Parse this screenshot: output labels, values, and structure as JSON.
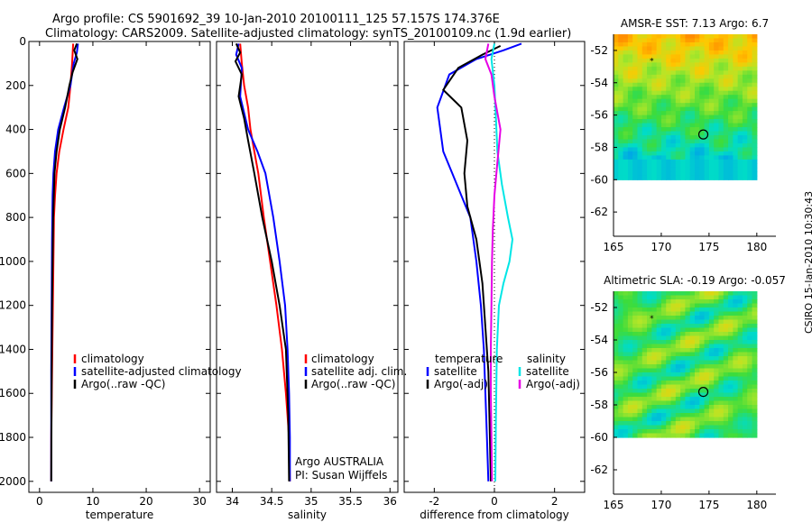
{
  "header": {
    "line1": "Argo profile: CS 5901692_39 10-Jan-2010 20100111_125 57.157S 174.376E",
    "line2": "Climatology: CARS2009. Satellite-adjusted climatology: synTS_20100109.nc (1.9d earlier)"
  },
  "credit": "CSIRO 15-Jan-2010 10:30:43",
  "colors": {
    "climatology": "#ff0000",
    "satellite": "#0000ff",
    "argo": "#000000",
    "salinity_satellite": "#00e6e6",
    "salinity_argo": "#e600e6"
  },
  "chart_data": [
    {
      "id": "temperature",
      "type": "line",
      "xlabel": "temperature",
      "ylabel": "",
      "xlim": [
        -2,
        32
      ],
      "ylim": [
        0,
        2050
      ],
      "xticks": [
        0,
        10,
        20,
        30
      ],
      "xtick_labels": [
        "0",
        "10",
        "20",
        "30"
      ],
      "yticks": [
        0,
        200,
        400,
        600,
        800,
        1000,
        1200,
        1400,
        1600,
        1800,
        2000
      ],
      "ytick_labels": [
        "0",
        "200",
        "400",
        "600",
        "800",
        "1000",
        "1200",
        "1400",
        "1600",
        "1800",
        "2000"
      ],
      "legend": [
        "climatology",
        "satellite-adjusted climatology",
        "Argo(..raw -QC)"
      ],
      "series": [
        {
          "name": "climatology",
          "color": "#ff0000",
          "x": [
            6.3,
            6.1,
            5.8,
            5.4,
            4.5,
            3.7,
            3.2,
            2.9,
            2.7,
            2.6,
            2.5,
            2.4,
            2.3,
            2.2,
            2.2
          ],
          "y": [
            10,
            100,
            200,
            300,
            400,
            500,
            600,
            700,
            800,
            1000,
            1200,
            1400,
            1600,
            1800,
            2000
          ]
        },
        {
          "name": "satellite-adjusted climatology",
          "color": "#0000ff",
          "x": [
            7.2,
            7.0,
            6.4,
            5.8,
            4.6,
            3.5,
            2.9,
            2.6,
            2.45,
            2.35,
            2.3,
            2.25,
            2.2,
            2.2,
            2.2
          ],
          "y": [
            10,
            50,
            100,
            200,
            300,
            400,
            500,
            600,
            700,
            900,
            1100,
            1300,
            1500,
            1800,
            2000
          ]
        },
        {
          "name": "Argo(..raw -QC)",
          "color": "#000000",
          "x": [
            7.0,
            6.5,
            7.1,
            6.2,
            5.6,
            4.8,
            3.8,
            3.2,
            2.8,
            2.55,
            2.45,
            2.35,
            2.3,
            2.25,
            2.2
          ],
          "y": [
            10,
            40,
            80,
            140,
            200,
            300,
            400,
            500,
            600,
            800,
            1000,
            1200,
            1400,
            1700,
            2000
          ]
        }
      ]
    },
    {
      "id": "salinity",
      "type": "line",
      "xlabel": "salinity",
      "ylabel": "",
      "xlim": [
        33.8,
        36.1
      ],
      "ylim": [
        0,
        2050
      ],
      "xticks": [
        34,
        34.5,
        35,
        35.5,
        36
      ],
      "xtick_labels": [
        "34",
        "34.5",
        "35",
        "35.5",
        "36"
      ],
      "legend": [
        "climatology",
        "satellite adj. clim.",
        "Argo(..raw -QC)"
      ],
      "footnote": [
        "Argo AUSTRALIA",
        "PI: Susan Wijffels"
      ],
      "series": [
        {
          "name": "climatology",
          "color": "#ff0000",
          "x": [
            34.1,
            34.12,
            34.15,
            34.2,
            34.23,
            34.28,
            34.33,
            34.4,
            34.48,
            34.56,
            34.63,
            34.68,
            34.72,
            34.73
          ],
          "y": [
            10,
            100,
            200,
            300,
            400,
            500,
            600,
            800,
            1000,
            1200,
            1400,
            1600,
            1800,
            2000
          ]
        },
        {
          "name": "satellite adj. clim.",
          "color": "#0000ff",
          "x": [
            34.08,
            34.05,
            34.12,
            34.1,
            34.2,
            34.32,
            34.42,
            34.52,
            34.6,
            34.67,
            34.7,
            34.72,
            34.73,
            34.73
          ],
          "y": [
            10,
            60,
            120,
            250,
            400,
            500,
            600,
            800,
            1000,
            1200,
            1400,
            1600,
            1800,
            2000
          ]
        },
        {
          "name": "Argo(..raw -QC)",
          "color": "#000000",
          "x": [
            34.05,
            34.1,
            34.04,
            34.12,
            34.08,
            34.15,
            34.2,
            34.28,
            34.38,
            34.5,
            34.6,
            34.68,
            34.71,
            34.72
          ],
          "y": [
            10,
            50,
            90,
            150,
            250,
            350,
            450,
            600,
            800,
            1000,
            1200,
            1400,
            1700,
            2000
          ]
        }
      ]
    },
    {
      "id": "difference",
      "type": "line",
      "xlabel": "difference from climatology",
      "ylabel": "",
      "xlim": [
        -3,
        3
      ],
      "ylim": [
        0,
        2050
      ],
      "xticks": [
        -2,
        0,
        2
      ],
      "xtick_labels": [
        "-2",
        "0",
        "2"
      ],
      "legend": [
        "temperature",
        "satellite",
        "Argo(-adj)",
        "salinity",
        "satellite",
        "Argo(-adj)"
      ],
      "series": [
        {
          "name": "temperature satellite",
          "color": "#0000ff",
          "x": [
            0.9,
            0.3,
            -0.6,
            -1.5,
            -1.9,
            -1.7,
            -1.4,
            -1.1,
            -0.8,
            -0.6,
            -0.45,
            -0.35,
            -0.3,
            -0.25,
            -0.2
          ],
          "y": [
            10,
            40,
            80,
            150,
            300,
            500,
            600,
            700,
            800,
            1000,
            1200,
            1400,
            1600,
            1800,
            2000
          ]
        },
        {
          "name": "temperature Argo(-adj)",
          "color": "#000000",
          "x": [
            0.2,
            -0.4,
            -1.2,
            -1.7,
            -1.1,
            -0.9,
            -1.0,
            -0.9,
            -0.6,
            -0.4,
            -0.3,
            -0.2,
            -0.15,
            -0.12
          ],
          "y": [
            20,
            60,
            120,
            220,
            300,
            450,
            600,
            750,
            900,
            1100,
            1300,
            1500,
            1800,
            2000
          ]
        },
        {
          "name": "salinity satellite",
          "color": "#00e6e6",
          "x": [
            0.0,
            -0.1,
            0.0,
            0.05,
            0.1,
            0.25,
            0.45,
            0.6,
            0.5,
            0.3,
            0.15,
            0.08,
            0.05,
            0.03
          ],
          "y": [
            10,
            80,
            200,
            350,
            500,
            650,
            800,
            900,
            1000,
            1100,
            1200,
            1400,
            1700,
            2000
          ]
        },
        {
          "name": "salinity Argo(-adj)",
          "color": "#e600e6",
          "x": [
            -0.2,
            -0.3,
            -0.1,
            0.0,
            0.2,
            0.1,
            0.0,
            -0.05,
            -0.08,
            -0.1,
            -0.12,
            -0.12,
            -0.1,
            -0.08
          ],
          "y": [
            10,
            80,
            150,
            250,
            400,
            550,
            700,
            850,
            1000,
            1200,
            1400,
            1600,
            1800,
            2000
          ]
        }
      ]
    },
    {
      "id": "amsr-sst",
      "type": "heatmap",
      "title": "AMSR-E SST: 7.13 Argo: 6.7",
      "xlim": [
        165,
        182
      ],
      "ylim": [
        -63.5,
        -51
      ],
      "xticks": [
        165,
        170,
        175,
        180
      ],
      "yticks": [
        -52,
        -54,
        -56,
        -58,
        -60,
        -62
      ],
      "ytick_labels": [
        "-52",
        "-54",
        "-56",
        "-58",
        "-60",
        "-62"
      ],
      "field_extent": {
        "lon": [
          165,
          180
        ],
        "lat": [
          -60,
          -51
        ]
      },
      "marker": {
        "lon": 174.4,
        "lat": -57.2
      },
      "star": {
        "lon": 169,
        "lat": -52.6
      }
    },
    {
      "id": "altimetric-sla",
      "type": "heatmap",
      "title": "Altimetric SLA: -0.19 Argo: -0.057",
      "xlim": [
        165,
        182
      ],
      "ylim": [
        -63.5,
        -51
      ],
      "xticks": [
        165,
        170,
        175,
        180
      ],
      "yticks": [
        -52,
        -54,
        -56,
        -58,
        -60,
        -62
      ],
      "ytick_labels": [
        "-52",
        "-54",
        "-56",
        "-58",
        "-60",
        "-62"
      ],
      "field_extent": {
        "lon": [
          165,
          180
        ],
        "lat": [
          -60,
          -51
        ]
      },
      "marker": {
        "lon": 174.4,
        "lat": -57.2
      },
      "star": {
        "lon": 169,
        "lat": -52.6
      }
    }
  ]
}
